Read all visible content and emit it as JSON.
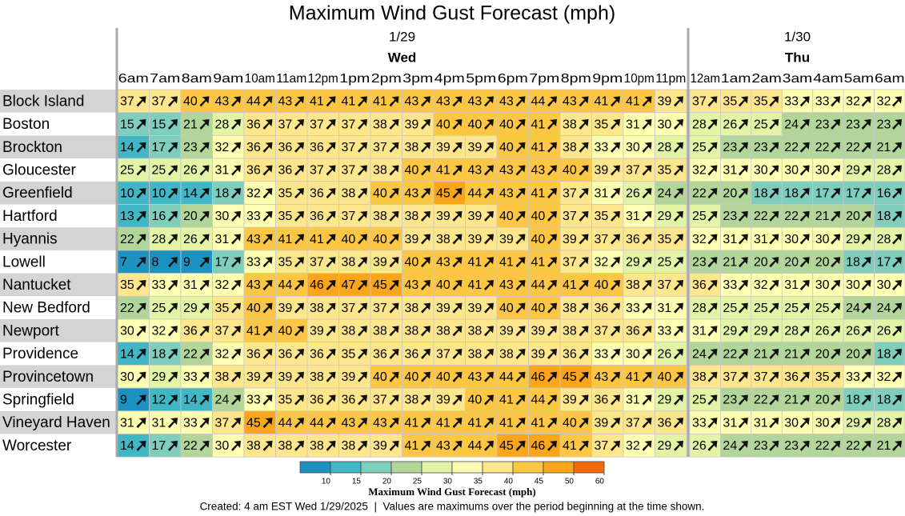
{
  "chart_data": {
    "type": "heatmap",
    "title": "Maximum Wind Gust Forecast (mph)",
    "days": [
      {
        "date": "1/29",
        "day": "Wed",
        "hours": [
          "6am",
          "7am",
          "8am",
          "9am",
          "10am",
          "11am",
          "12pm",
          "1pm",
          "2pm",
          "3pm",
          "4pm",
          "5pm",
          "6pm",
          "7pm",
          "8pm",
          "9pm",
          "10pm",
          "11pm"
        ]
      },
      {
        "date": "1/30",
        "day": "Thu",
        "hours": [
          "12am",
          "1am",
          "2am",
          "3am",
          "4am",
          "5am",
          "6am"
        ]
      }
    ],
    "rows": [
      {
        "name": "Block Island",
        "values": [
          37,
          37,
          40,
          43,
          44,
          43,
          41,
          41,
          41,
          43,
          43,
          43,
          43,
          44,
          43,
          41,
          41,
          39,
          37,
          35,
          35,
          33,
          33,
          32,
          32
        ]
      },
      {
        "name": "Boston",
        "values": [
          15,
          15,
          21,
          28,
          36,
          37,
          37,
          37,
          38,
          39,
          40,
          40,
          40,
          41,
          38,
          35,
          31,
          30,
          28,
          26,
          25,
          24,
          23,
          23,
          23
        ]
      },
      {
        "name": "Brockton",
        "values": [
          14,
          17,
          23,
          32,
          36,
          36,
          36,
          37,
          37,
          38,
          39,
          39,
          40,
          41,
          38,
          33,
          30,
          28,
          25,
          23,
          23,
          22,
          22,
          22,
          21
        ]
      },
      {
        "name": "Gloucester",
        "values": [
          25,
          25,
          26,
          31,
          36,
          36,
          37,
          37,
          38,
          40,
          41,
          43,
          43,
          43,
          40,
          39,
          37,
          35,
          32,
          31,
          30,
          30,
          30,
          29,
          28
        ]
      },
      {
        "name": "Greenfield",
        "values": [
          10,
          10,
          14,
          18,
          32,
          35,
          36,
          38,
          40,
          43,
          45,
          44,
          43,
          41,
          37,
          31,
          26,
          24,
          22,
          20,
          18,
          18,
          17,
          17,
          16
        ]
      },
      {
        "name": "Hartford",
        "values": [
          13,
          16,
          20,
          30,
          33,
          35,
          36,
          37,
          38,
          38,
          39,
          39,
          40,
          40,
          37,
          35,
          31,
          29,
          25,
          23,
          22,
          22,
          21,
          20,
          18
        ]
      },
      {
        "name": "Hyannis",
        "values": [
          22,
          28,
          26,
          31,
          43,
          41,
          41,
          40,
          40,
          39,
          38,
          39,
          39,
          40,
          39,
          37,
          36,
          35,
          32,
          31,
          31,
          30,
          30,
          29,
          28
        ]
      },
      {
        "name": "Lowell",
        "values": [
          7,
          8,
          9,
          17,
          33,
          35,
          37,
          38,
          39,
          40,
          43,
          41,
          41,
          41,
          37,
          32,
          29,
          25,
          23,
          21,
          20,
          20,
          20,
          18,
          17
        ]
      },
      {
        "name": "Nantucket",
        "values": [
          35,
          33,
          31,
          32,
          43,
          44,
          46,
          47,
          45,
          43,
          40,
          41,
          43,
          44,
          41,
          40,
          38,
          37,
          36,
          33,
          32,
          31,
          30,
          30,
          30
        ]
      },
      {
        "name": "New Bedford",
        "values": [
          22,
          25,
          29,
          35,
          40,
          39,
          38,
          37,
          37,
          38,
          39,
          39,
          40,
          40,
          38,
          36,
          33,
          31,
          28,
          25,
          25,
          25,
          25,
          24,
          24
        ]
      },
      {
        "name": "Newport",
        "values": [
          30,
          32,
          36,
          37,
          41,
          40,
          39,
          38,
          38,
          38,
          38,
          38,
          39,
          39,
          38,
          37,
          36,
          33,
          31,
          29,
          29,
          28,
          26,
          26,
          26
        ]
      },
      {
        "name": "Providence",
        "values": [
          14,
          18,
          22,
          32,
          36,
          36,
          36,
          35,
          36,
          36,
          37,
          38,
          38,
          39,
          36,
          33,
          30,
          26,
          24,
          22,
          21,
          21,
          20,
          20,
          18
        ]
      },
      {
        "name": "Provincetown",
        "values": [
          30,
          29,
          33,
          38,
          39,
          39,
          38,
          39,
          40,
          40,
          40,
          43,
          44,
          46,
          45,
          43,
          41,
          40,
          38,
          37,
          37,
          36,
          35,
          33,
          32
        ]
      },
      {
        "name": "Springfield",
        "values": [
          9,
          12,
          14,
          24,
          33,
          35,
          36,
          36,
          37,
          38,
          39,
          40,
          41,
          44,
          39,
          36,
          31,
          29,
          25,
          23,
          22,
          21,
          20,
          18,
          18
        ]
      },
      {
        "name": "Vineyard Haven",
        "values": [
          31,
          31,
          33,
          37,
          45,
          44,
          44,
          43,
          43,
          41,
          41,
          41,
          41,
          41,
          40,
          39,
          37,
          36,
          33,
          31,
          31,
          30,
          30,
          29,
          28
        ]
      },
      {
        "name": "Worcester",
        "values": [
          14,
          17,
          22,
          30,
          38,
          38,
          38,
          38,
          39,
          41,
          43,
          44,
          45,
          46,
          41,
          37,
          32,
          29,
          26,
          24,
          23,
          23,
          22,
          22,
          21
        ]
      }
    ],
    "colorbar": {
      "label": "Maximum Wind Gust Forecast (mph)",
      "ticks": [
        10,
        15,
        20,
        25,
        30,
        35,
        40,
        45,
        50,
        60
      ],
      "colors": [
        "#1d91c0",
        "#41b6c4",
        "#7fcdbb",
        "#b2d69a",
        "#e3f4a6",
        "#ffffb2",
        "#fee68c",
        "#fdc743",
        "#fba51a",
        "#f26b0b"
      ]
    },
    "note": "Created: 4 am EST Wed 1/29/2025  |  Values are maximums over the period beginning at the time shown."
  }
}
